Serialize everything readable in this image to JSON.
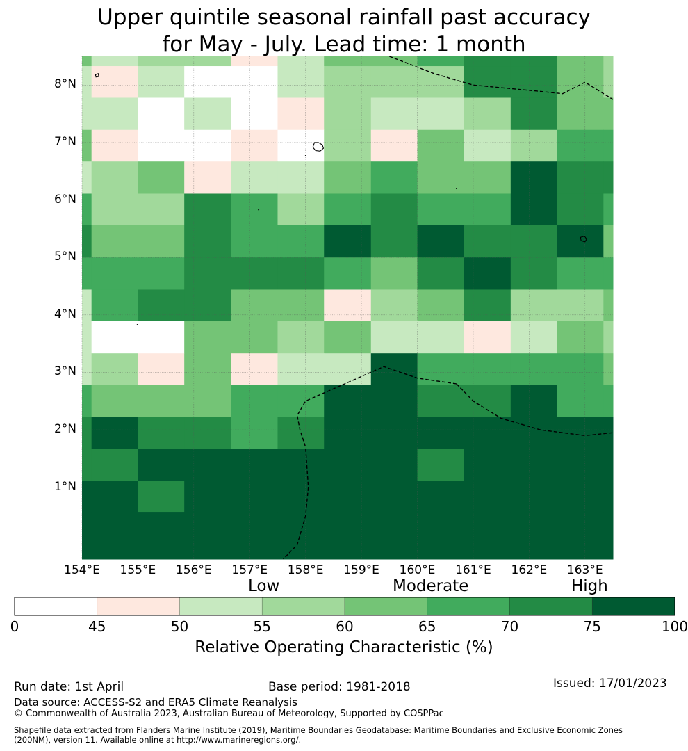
{
  "title": {
    "line1": "Upper quintile seasonal rainfall past accuracy",
    "line2": "for May - July. Lead time: 1 month"
  },
  "map": {
    "lat_labels": [
      "8°N",
      "7°N",
      "6°N",
      "5°N",
      "4°N",
      "3°N",
      "2°N",
      "1°N"
    ],
    "lat_values": [
      8,
      7,
      6,
      5,
      4,
      3,
      2,
      1
    ],
    "lon_labels": [
      "154°E",
      "155°E",
      "156°E",
      "157°E",
      "158°E",
      "159°E",
      "160°E",
      "161°E",
      "162°E",
      "163°E"
    ],
    "lon_values": [
      154,
      155,
      156,
      157,
      158,
      159,
      160,
      161,
      162,
      163
    ],
    "lon_range": [
      154.0,
      163.5
    ],
    "lat_range": [
      -0.25,
      8.5
    ],
    "grid_lon_edges": [
      154.0,
      154.17,
      155.0,
      155.83,
      156.67,
      157.5,
      158.33,
      159.17,
      160.0,
      160.83,
      161.67,
      162.5,
      163.33,
      163.5
    ],
    "grid_lat_edges": [
      8.5,
      8.33,
      7.78,
      7.22,
      6.67,
      6.11,
      5.56,
      5.0,
      4.44,
      3.89,
      3.33,
      2.78,
      2.22,
      1.67,
      1.11,
      0.56,
      -0.25
    ],
    "category_grid": [
      [
        4,
        2,
        3,
        3,
        1,
        2,
        4,
        4,
        5,
        6,
        6,
        4,
        3
      ],
      [
        2,
        1,
        2,
        0,
        0,
        2,
        3,
        3,
        3,
        6,
        6,
        4,
        3
      ],
      [
        2,
        2,
        0,
        2,
        0,
        1,
        3,
        2,
        2,
        3,
        6,
        4,
        4
      ],
      [
        4,
        1,
        0,
        0,
        1,
        0,
        3,
        1,
        4,
        2,
        3,
        5,
        5
      ],
      [
        2,
        3,
        4,
        1,
        2,
        2,
        4,
        5,
        4,
        4,
        7,
        6,
        6
      ],
      [
        5,
        3,
        3,
        6,
        5,
        3,
        5,
        6,
        5,
        5,
        7,
        6,
        5
      ],
      [
        6,
        4,
        4,
        6,
        5,
        5,
        7,
        6,
        7,
        6,
        6,
        7,
        4
      ],
      [
        5,
        5,
        5,
        6,
        6,
        6,
        5,
        4,
        6,
        7,
        6,
        5,
        5
      ],
      [
        2,
        5,
        6,
        6,
        4,
        4,
        1,
        3,
        4,
        6,
        3,
        3,
        4
      ],
      [
        2,
        0,
        0,
        4,
        4,
        3,
        4,
        2,
        2,
        1,
        2,
        4,
        3
      ],
      [
        2,
        3,
        1,
        4,
        1,
        2,
        2,
        7,
        5,
        5,
        5,
        5,
        4
      ],
      [
        5,
        4,
        4,
        4,
        5,
        5,
        7,
        7,
        6,
        6,
        7,
        5,
        5
      ],
      [
        6,
        7,
        6,
        6,
        5,
        6,
        7,
        7,
        7,
        7,
        7,
        7,
        7
      ],
      [
        6,
        6,
        7,
        7,
        7,
        7,
        7,
        7,
        6,
        7,
        7,
        7,
        7
      ],
      [
        7,
        7,
        6,
        7,
        7,
        7,
        7,
        7,
        7,
        7,
        7,
        7,
        7
      ],
      [
        7,
        7,
        7,
        7,
        7,
        7,
        7,
        7,
        7,
        7,
        7,
        7,
        7
      ]
    ],
    "eez_boundaries": [
      [
        [
          159.5,
          8.5
        ],
        [
          160.3,
          8.2
        ],
        [
          161.0,
          8.0
        ],
        [
          162.1,
          7.9
        ],
        [
          162.6,
          7.85
        ],
        [
          163.0,
          8.05
        ],
        [
          163.5,
          7.75
        ]
      ],
      [
        [
          160.7,
          2.8
        ],
        [
          160.0,
          2.9
        ],
        [
          159.4,
          3.1
        ],
        [
          158.7,
          2.8
        ],
        [
          158.0,
          2.5
        ],
        [
          157.85,
          2.25
        ],
        [
          157.9,
          2.0
        ],
        [
          158.0,
          1.7
        ],
        [
          158.05,
          1.0
        ],
        [
          158.0,
          0.5
        ],
        [
          157.85,
          0.0
        ],
        [
          157.6,
          -0.25
        ]
      ],
      [
        [
          160.7,
          2.8
        ],
        [
          161.0,
          2.5
        ],
        [
          161.5,
          2.2
        ],
        [
          162.2,
          2.0
        ],
        [
          163.0,
          1.9
        ],
        [
          163.5,
          1.95
        ]
      ]
    ],
    "islands": [
      [
        [
          158.16,
          7.0
        ],
        [
          158.23,
          7.0
        ],
        [
          158.3,
          6.96
        ],
        [
          158.32,
          6.9
        ],
        [
          158.26,
          6.85
        ],
        [
          158.18,
          6.86
        ],
        [
          158.13,
          6.92
        ]
      ],
      [
        [
          162.92,
          5.35
        ],
        [
          162.99,
          5.37
        ],
        [
          163.03,
          5.32
        ],
        [
          163.0,
          5.27
        ],
        [
          162.93,
          5.29
        ]
      ],
      [
        [
          154.24,
          8.18
        ],
        [
          154.29,
          8.2
        ],
        [
          154.3,
          8.15
        ],
        [
          154.25,
          8.14
        ]
      ]
    ],
    "dots": [
      [
        157.16,
        5.83
      ],
      [
        160.7,
        6.2
      ],
      [
        154.99,
        3.83
      ],
      [
        158.0,
        6.77
      ]
    ]
  },
  "colorbar": {
    "boundaries": [
      0,
      45,
      50,
      55,
      60,
      65,
      70,
      75,
      100
    ],
    "colors": [
      "#ffffff",
      "#fee8df",
      "#c7e9c0",
      "#a1d99b",
      "#74c476",
      "#41ab5d",
      "#238b45",
      "#005a32"
    ],
    "tick_labels": [
      "0",
      "45",
      "50",
      "55",
      "60",
      "65",
      "70",
      "75",
      "100"
    ],
    "category_labels": [
      "Low",
      "Moderate",
      "High"
    ],
    "title": "Relative Operating Characteristic (%)"
  },
  "footer": {
    "run_date": "Run date: 1st April",
    "base_period": "Base period: 1981-2018",
    "issued": "Issued: 17/01/2023",
    "data_source": "Data source: ACCESS-S2 and ERA5 Climate Reanalysis",
    "copyright": "© Commonwealth of Australia 2023, Australian Bureau of Meteorology, Supported by COSPPac",
    "shapefile_line1": "Shapefile data extracted from Flanders Marine Institute (2019), Maritime Boundaries Geodatabase: Maritime Boundaries and Exclusive Economic Zones",
    "shapefile_line2": "(200NM), version 11. Available online at http://www.marineregions.org/."
  }
}
